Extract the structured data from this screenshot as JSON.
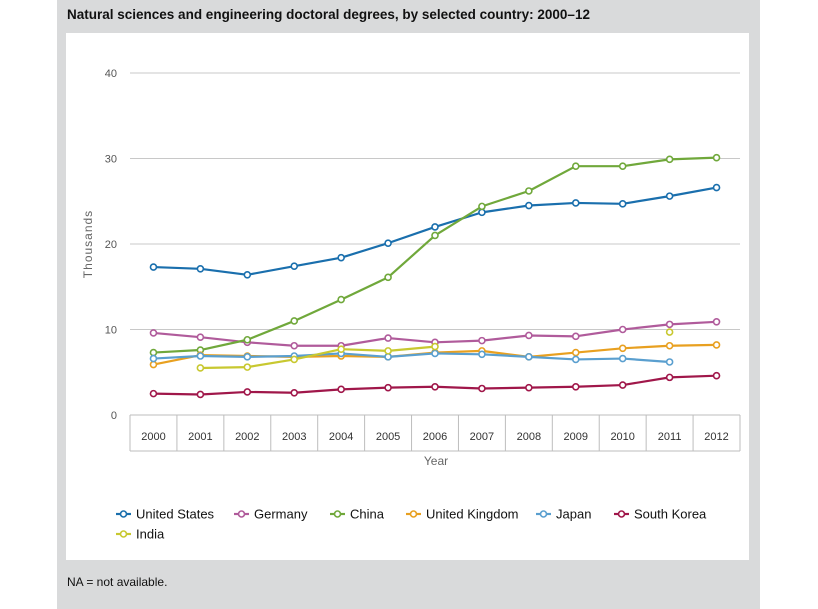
{
  "title": "Natural sciences and engineering doctoral degrees, by selected country: 2000–12",
  "note": "NA = not available.",
  "chart_data": {
    "type": "line",
    "title": "Natural sciences and engineering doctoral degrees, by selected country: 2000–12",
    "xlabel": "Year",
    "ylabel": "Thousands",
    "ylim": [
      0,
      40
    ],
    "yticks": [
      0,
      10,
      20,
      30,
      40
    ],
    "grid": "horizontal",
    "legend_position": "bottom",
    "categories": [
      "2000",
      "2001",
      "2002",
      "2003",
      "2004",
      "2005",
      "2006",
      "2007",
      "2008",
      "2009",
      "2010",
      "2011",
      "2012"
    ],
    "series": [
      {
        "name": "United States",
        "color": "#1a6fad",
        "values": [
          17.3,
          17.1,
          16.4,
          17.4,
          18.4,
          20.1,
          22.0,
          23.7,
          24.5,
          24.8,
          24.7,
          25.6,
          26.6
        ]
      },
      {
        "name": "Germany",
        "color": "#b05b9b",
        "values": [
          9.6,
          9.1,
          8.5,
          8.1,
          8.1,
          9.0,
          8.5,
          8.7,
          9.3,
          9.2,
          10.0,
          10.6,
          10.9
        ]
      },
      {
        "name": "China",
        "color": "#70a83b",
        "values": [
          7.3,
          7.6,
          8.8,
          11.0,
          13.5,
          16.1,
          21.0,
          24.4,
          26.2,
          29.1,
          29.1,
          29.9,
          30.1
        ]
      },
      {
        "name": "United Kingdom",
        "color": "#e8a020",
        "values": [
          5.9,
          7.0,
          6.9,
          6.8,
          6.9,
          6.8,
          7.3,
          7.5,
          6.8,
          7.3,
          7.8,
          8.1,
          8.2
        ]
      },
      {
        "name": "Japan",
        "color": "#5a9fcf",
        "values": [
          6.6,
          6.9,
          6.8,
          6.9,
          7.2,
          6.8,
          7.2,
          7.1,
          6.8,
          6.5,
          6.6,
          6.2,
          null
        ]
      },
      {
        "name": "South Korea",
        "color": "#a0174a",
        "values": [
          2.5,
          2.4,
          2.7,
          2.6,
          3.0,
          3.2,
          3.3,
          3.1,
          3.2,
          3.3,
          3.5,
          4.4,
          4.6
        ]
      },
      {
        "name": "India",
        "color": "#c8c830",
        "values": [
          null,
          5.5,
          5.6,
          6.5,
          7.7,
          7.5,
          8.0,
          null,
          null,
          null,
          null,
          9.7,
          null
        ]
      }
    ]
  }
}
